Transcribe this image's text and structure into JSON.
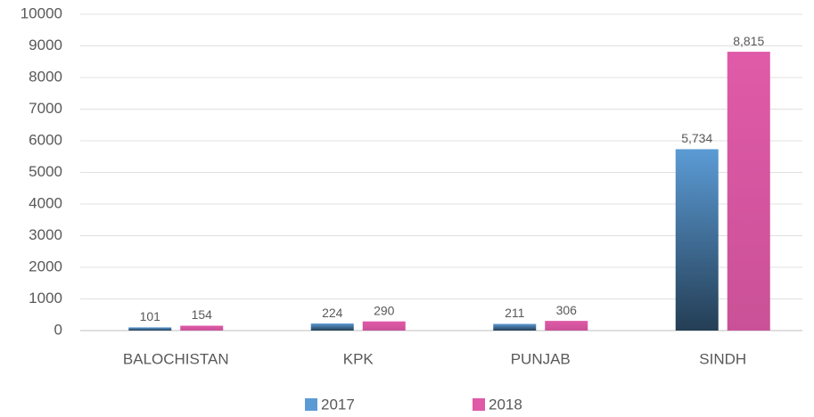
{
  "chart_data": {
    "type": "bar",
    "categories": [
      "BALOCHISTAN",
      "KPK",
      "PUNJAB",
      "SINDH"
    ],
    "series": [
      {
        "name": "2017",
        "color": "#5b9bd5",
        "values": [
          101,
          224,
          211,
          5734
        ],
        "value_labels": [
          "101",
          "224",
          "211",
          "5,734"
        ]
      },
      {
        "name": "2018",
        "color": "#e05aa8",
        "values": [
          154,
          290,
          306,
          8815
        ],
        "value_labels": [
          "154",
          "290",
          "306",
          "8,815"
        ]
      }
    ],
    "ylim": [
      0,
      10000
    ],
    "yticks": [
      0,
      1000,
      2000,
      3000,
      4000,
      5000,
      6000,
      7000,
      8000,
      9000,
      10000
    ],
    "grid": true,
    "legend": "bottom"
  }
}
